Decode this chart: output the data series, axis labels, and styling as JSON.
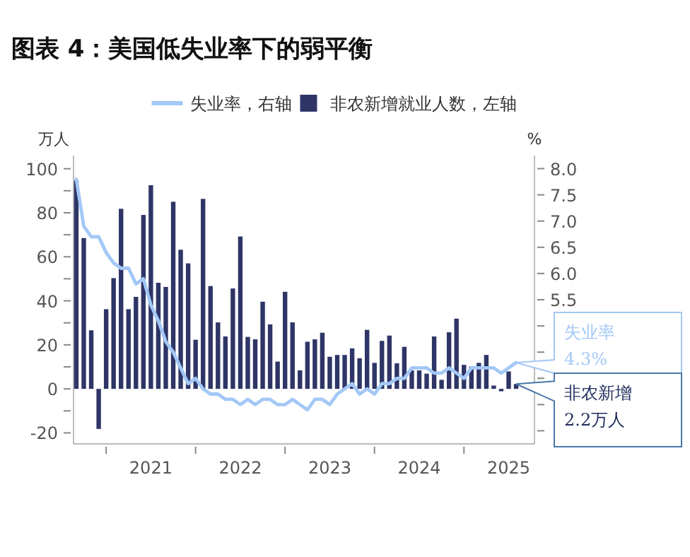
{
  "chart_data": {
    "type": "bar",
    "title": "图表 4：美国低失业率下的弱平衡",
    "ylabel": "万人",
    "y2label": "%",
    "x": [
      "2020-09",
      "2020-10",
      "2020-11",
      "2020-12",
      "2021-01",
      "2021-02",
      "2021-03",
      "2021-04",
      "2021-05",
      "2021-06",
      "2021-07",
      "2021-08",
      "2021-09",
      "2021-10",
      "2021-11",
      "2021-12",
      "2022-01",
      "2022-02",
      "2022-03",
      "2022-04",
      "2022-05",
      "2022-06",
      "2022-07",
      "2022-08",
      "2022-09",
      "2022-10",
      "2022-11",
      "2022-12",
      "2023-01",
      "2023-02",
      "2023-03",
      "2023-04",
      "2023-05",
      "2023-06",
      "2023-07",
      "2023-08",
      "2023-09",
      "2023-10",
      "2023-11",
      "2023-12",
      "2024-01",
      "2024-02",
      "2024-03",
      "2024-04",
      "2024-05",
      "2024-06",
      "2024-07",
      "2024-08",
      "2024-09",
      "2024-10",
      "2024-11",
      "2024-12",
      "2025-01",
      "2025-02",
      "2025-03",
      "2025-04",
      "2025-05",
      "2025-06",
      "2025-07",
      "2025-08"
    ],
    "series": [
      {
        "name": "失业率，右轴",
        "type": "line",
        "axis": "y2",
        "color": "#a3c8f7",
        "values": [
          7.8,
          6.9,
          6.7,
          6.7,
          6.4,
          6.2,
          6.1,
          6.1,
          5.8,
          5.9,
          5.4,
          5.1,
          4.7,
          4.5,
          4.2,
          3.9,
          4.0,
          3.8,
          3.7,
          3.7,
          3.6,
          3.6,
          3.5,
          3.6,
          3.5,
          3.6,
          3.6,
          3.5,
          3.5,
          3.6,
          3.5,
          3.4,
          3.6,
          3.6,
          3.5,
          3.7,
          3.8,
          3.9,
          3.7,
          3.8,
          3.7,
          3.9,
          3.9,
          4.0,
          4.0,
          4.2,
          4.2,
          4.2,
          4.1,
          4.1,
          4.2,
          4.1,
          4.0,
          4.2,
          4.2,
          4.2,
          4.2,
          4.1,
          4.2,
          4.3
        ]
      },
      {
        "name": "非农新增就业人数，左轴",
        "color": "#2e3566",
        "values": [
          94.6,
          68.5,
          26.6,
          -18.2,
          36.2,
          50.3,
          81.8,
          36.2,
          41.8,
          79,
          92.5,
          48.2,
          46.3,
          85,
          63.2,
          57,
          22.3,
          86.3,
          46.7,
          30.2,
          23.8,
          45.6,
          69.2,
          23.6,
          22.5,
          39.6,
          29.3,
          12.4,
          44.1,
          30.2,
          8.4,
          21.4,
          22.5,
          25.5,
          14.6,
          15.4,
          15.4,
          18.4,
          13.9,
          26.8,
          11.8,
          21.8,
          24.2,
          11.6,
          19.1,
          8.4,
          8.4,
          6.9,
          23.8,
          4.1,
          25.7,
          31.9,
          10.9,
          10.1,
          11.8,
          15.4,
          1.5,
          -1.1,
          7.9,
          2.2
        ]
      }
    ],
    "annotations": [
      {
        "text": "失业率\n4.3%",
        "x": "2025-08",
        "y": 4.3
      },
      {
        "text": "非农新增\n2.2万人",
        "x": "2025-08",
        "y": 2.2
      }
    ],
    "xlim": [
      "2020-08-20",
      "2025-10-15"
    ],
    "xticks": [
      {
        "value": "2021-01",
        "label": null
      },
      {
        "value": "2021-07",
        "label": "2021"
      },
      {
        "value": "2022-01",
        "label": null
      },
      {
        "value": "2022-07",
        "label": "2022"
      },
      {
        "value": "2023-01",
        "label": null
      },
      {
        "value": "2023-07",
        "label": "2023"
      },
      {
        "value": "2024-01",
        "label": null
      },
      {
        "value": "2024-07",
        "label": "2024"
      },
      {
        "value": "2025-01",
        "label": null
      },
      {
        "value": "2025-07",
        "label": "2025"
      }
    ],
    "ylim": [
      -25,
      106
    ],
    "yticks": [
      -20,
      {
        "value": -10,
        "label": null
      },
      0,
      {
        "value": 10,
        "label": null
      },
      20,
      {
        "value": 30,
        "label": null
      },
      40,
      {
        "value": 50,
        "label": null
      },
      60,
      {
        "value": 70,
        "label": null
      },
      80,
      {
        "value": 90,
        "label": null
      },
      100
    ],
    "y2lim": [
      2.75,
      8.25
    ],
    "y2ticks": [
      {
        "value": 3.0,
        "label": null
      },
      {
        "value": 3.5,
        "label": null
      },
      {
        "value": 4.0,
        "label": null
      },
      {
        "value": 4.5,
        "label": null
      },
      {
        "value": 5.0,
        "label": null
      },
      {
        "value": 5.5,
        "label": "5.5"
      },
      {
        "value": 6.0,
        "label": "6.0"
      },
      {
        "value": 6.5,
        "label": "6.5"
      },
      {
        "value": 7.0,
        "label": "7.0"
      },
      {
        "value": 7.5,
        "label": "7.5"
      },
      {
        "value": 8.0,
        "label": "8.0"
      }
    ],
    "grid": false,
    "legend": "top"
  }
}
